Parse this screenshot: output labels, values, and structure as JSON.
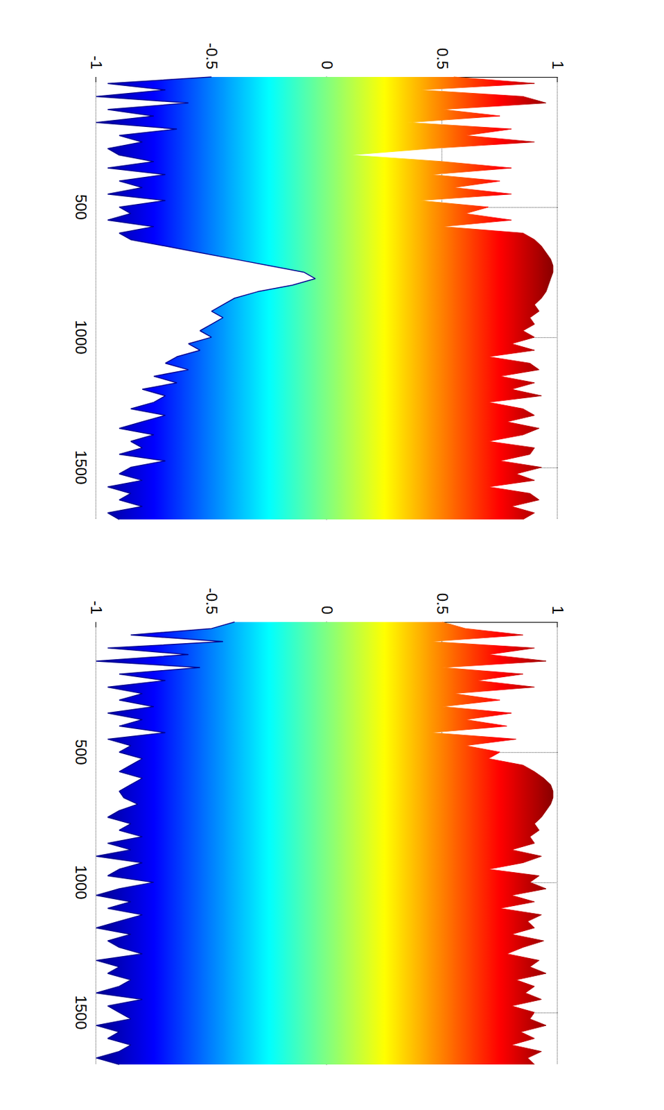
{
  "chart_data": [
    {
      "type": "band",
      "grid": true,
      "tick_labels": true,
      "xlim": [
        0,
        1700
      ],
      "xticks": [
        500,
        1000,
        1500
      ],
      "ylim": [
        -1,
        1
      ],
      "yticks": [
        -1,
        -0.5,
        0,
        0.5,
        1
      ],
      "x": [
        0,
        25,
        50,
        75,
        100,
        125,
        150,
        175,
        200,
        225,
        250,
        275,
        300,
        325,
        350,
        375,
        400,
        425,
        450,
        475,
        500,
        525,
        550,
        575,
        600,
        625,
        650,
        675,
        700,
        725,
        750,
        775,
        800,
        825,
        850,
        875,
        900,
        925,
        950,
        975,
        1000,
        1025,
        1050,
        1075,
        1100,
        1125,
        1150,
        1175,
        1200,
        1225,
        1250,
        1275,
        1300,
        1325,
        1350,
        1375,
        1400,
        1425,
        1450,
        1475,
        1500,
        1525,
        1550,
        1575,
        1600,
        1625,
        1650,
        1675,
        1700
      ],
      "upper": [
        0.55,
        0.9,
        0.4,
        0.85,
        0.95,
        0.5,
        0.75,
        0.35,
        0.8,
        0.6,
        0.9,
        0.45,
        0.1,
        0.5,
        0.8,
        0.45,
        0.75,
        0.55,
        0.8,
        0.4,
        0.7,
        0.6,
        0.8,
        0.5,
        0.85,
        0.9,
        0.93,
        0.95,
        0.97,
        0.98,
        0.98,
        0.97,
        0.96,
        0.95,
        0.93,
        0.9,
        0.92,
        0.88,
        0.9,
        0.85,
        0.9,
        0.8,
        0.9,
        0.7,
        0.88,
        0.92,
        0.75,
        0.9,
        0.8,
        0.93,
        0.7,
        0.85,
        0.9,
        0.78,
        0.92,
        0.85,
        0.7,
        0.9,
        0.88,
        0.75,
        0.93,
        0.82,
        0.9,
        0.7,
        0.88,
        0.92,
        0.8,
        0.9,
        0.85
      ],
      "lower": [
        -0.5,
        -0.95,
        -0.7,
        -1,
        -0.6,
        -0.95,
        -0.75,
        -1,
        -0.65,
        -0.9,
        -0.8,
        -0.95,
        -0.9,
        -0.75,
        -0.95,
        -0.7,
        -0.9,
        -0.8,
        -0.95,
        -0.7,
        -0.9,
        -0.85,
        -0.95,
        -0.75,
        -0.9,
        -0.85,
        -0.7,
        -0.55,
        -0.4,
        -0.25,
        -0.1,
        -0.05,
        -0.15,
        -0.3,
        -0.4,
        -0.45,
        -0.5,
        -0.45,
        -0.5,
        -0.55,
        -0.5,
        -0.6,
        -0.55,
        -0.65,
        -0.7,
        -0.6,
        -0.75,
        -0.65,
        -0.8,
        -0.7,
        -0.75,
        -0.85,
        -0.7,
        -0.8,
        -0.9,
        -0.75,
        -0.85,
        -0.8,
        -0.9,
        -0.7,
        -0.85,
        -0.9,
        -0.8,
        -0.95,
        -0.85,
        -0.9,
        -0.8,
        -0.95,
        -0.9
      ]
    },
    {
      "type": "band",
      "grid": true,
      "tick_labels": true,
      "xlim": [
        0,
        1700
      ],
      "xticks": [
        500,
        1000,
        1500
      ],
      "ylim": [
        -1,
        1
      ],
      "yticks": [
        -1,
        -0.5,
        0,
        0.5,
        1
      ],
      "x": [
        0,
        25,
        50,
        75,
        100,
        125,
        150,
        175,
        200,
        225,
        250,
        275,
        300,
        325,
        350,
        375,
        400,
        425,
        450,
        475,
        500,
        525,
        550,
        575,
        600,
        625,
        650,
        675,
        700,
        725,
        750,
        775,
        800,
        825,
        850,
        875,
        900,
        925,
        950,
        975,
        1000,
        1025,
        1050,
        1075,
        1100,
        1125,
        1150,
        1175,
        1200,
        1225,
        1250,
        1275,
        1300,
        1325,
        1350,
        1375,
        1400,
        1425,
        1450,
        1475,
        1500,
        1525,
        1550,
        1575,
        1600,
        1625,
        1650,
        1675,
        1700
      ],
      "upper": [
        0.5,
        0.6,
        0.85,
        0.45,
        0.9,
        0.7,
        0.95,
        0.5,
        0.85,
        0.65,
        0.9,
        0.55,
        0.75,
        0.5,
        0.8,
        0.6,
        0.78,
        0.45,
        0.82,
        0.6,
        0.75,
        0.7,
        0.85,
        0.9,
        0.94,
        0.97,
        0.98,
        0.98,
        0.97,
        0.95,
        0.93,
        0.9,
        0.92,
        0.88,
        0.9,
        0.8,
        0.93,
        0.85,
        0.7,
        0.92,
        0.88,
        0.95,
        0.8,
        0.9,
        0.75,
        0.93,
        0.87,
        0.9,
        0.8,
        0.94,
        0.85,
        0.78,
        0.92,
        0.88,
        0.95,
        0.82,
        0.9,
        0.86,
        0.93,
        0.8,
        0.9,
        0.88,
        0.95,
        0.84,
        0.9,
        0.8,
        0.93,
        0.87,
        0.9
      ],
      "lower": [
        -0.4,
        -0.5,
        -0.85,
        -0.45,
        -0.95,
        -0.6,
        -1,
        -0.55,
        -0.9,
        -0.7,
        -0.95,
        -0.8,
        -0.9,
        -0.75,
        -0.95,
        -0.8,
        -0.9,
        -0.7,
        -0.95,
        -0.85,
        -0.9,
        -0.8,
        -0.85,
        -0.9,
        -0.8,
        -0.85,
        -0.9,
        -0.88,
        -0.82,
        -0.9,
        -0.95,
        -0.85,
        -0.9,
        -0.8,
        -0.95,
        -0.85,
        -1,
        -0.8,
        -0.9,
        -0.95,
        -0.75,
        -0.9,
        -1,
        -0.85,
        -0.95,
        -0.8,
        -0.9,
        -1,
        -0.85,
        -0.95,
        -0.9,
        -0.8,
        -1,
        -0.9,
        -0.95,
        -0.85,
        -0.9,
        -1,
        -0.8,
        -0.95,
        -0.9,
        -0.85,
        -1,
        -0.9,
        -0.95,
        -0.85,
        -0.9,
        -1,
        -0.9
      ]
    }
  ]
}
